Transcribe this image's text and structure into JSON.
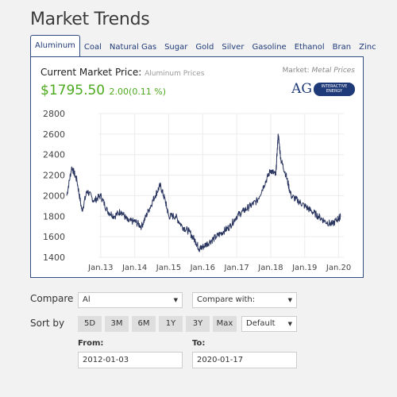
{
  "page": {
    "title": "Market Trends"
  },
  "tabs": [
    {
      "label": "Aluminum",
      "active": true
    },
    {
      "label": "Coal"
    },
    {
      "label": "Natural Gas"
    },
    {
      "label": "Sugar"
    },
    {
      "label": "Gold"
    },
    {
      "label": "Silver"
    },
    {
      "label": "Gasoline"
    },
    {
      "label": "Ethanol"
    },
    {
      "label": "Bran"
    },
    {
      "label": "Zinc"
    }
  ],
  "panel": {
    "current_label": "Current Market Price:",
    "current_sub": "Aluminum Prices",
    "price": "$1795.50",
    "change": "2.00(0.11 %)",
    "market_label": "Market:",
    "market_value": "Metal Prices",
    "logo_text": "AG",
    "logo_pill_line1": "INTERACTIVE",
    "logo_pill_line2": "ENERGY"
  },
  "colors": {
    "price_up": "#4caa1e",
    "line": "#2a3560",
    "brand": "#1f3a78"
  },
  "chart_data": {
    "type": "line",
    "title": "",
    "xlabel": "",
    "ylabel": "",
    "ylim": [
      1400,
      2800
    ],
    "yticks": [
      "1400",
      "1600",
      "1800",
      "2000",
      "2200",
      "2400",
      "2600",
      "2800"
    ],
    "xticks": [
      "Jan.13",
      "Jan.14",
      "Jan.15",
      "Jan.16",
      "Jan.17",
      "Jan.18",
      "Jan.19",
      "Jan.20"
    ],
    "x_start_year": 2012.0,
    "grid": true,
    "series": [
      {
        "x": [
          2012.0,
          2012.15,
          2012.3,
          2012.45,
          2012.6,
          2012.8,
          2013.0,
          2013.2,
          2013.4,
          2013.6,
          2013.8,
          2014.0,
          2014.2,
          2014.4,
          2014.6,
          2014.75,
          2014.9,
          2015.0,
          2015.2,
          2015.4,
          2015.6,
          2015.8,
          2015.9,
          2016.0,
          2016.2,
          2016.4,
          2016.6,
          2016.8,
          2017.0,
          2017.2,
          2017.4,
          2017.6,
          2017.8,
          2018.0,
          2018.15,
          2018.22,
          2018.3,
          2018.45,
          2018.6,
          2018.8,
          2019.0,
          2019.2,
          2019.4,
          2019.6,
          2019.8,
          2020.0,
          2020.05
        ],
        "values": [
          2000,
          2280,
          2150,
          1850,
          2050,
          1950,
          2000,
          1850,
          1800,
          1850,
          1750,
          1750,
          1700,
          1850,
          2000,
          2100,
          1950,
          1800,
          1800,
          1700,
          1650,
          1550,
          1480,
          1500,
          1550,
          1600,
          1650,
          1700,
          1800,
          1850,
          1900,
          1950,
          2100,
          2250,
          2200,
          2600,
          2350,
          2200,
          2000,
          1950,
          1900,
          1850,
          1800,
          1750,
          1720,
          1780,
          1795
        ]
      }
    ]
  },
  "controls": {
    "compare_label": "Compare",
    "compare_select": "Al",
    "compare_with": "Compare with:",
    "sort_label": "Sort by",
    "ranges": [
      "5D",
      "3M",
      "6M",
      "1Y",
      "3Y",
      "Max"
    ],
    "sort_select": "Default",
    "from_label": "From:",
    "from_value": "2012-01-03",
    "to_label": "To:",
    "to_value": "2020-01-17"
  },
  "icons": {
    "dropdown": "triangle-down"
  }
}
